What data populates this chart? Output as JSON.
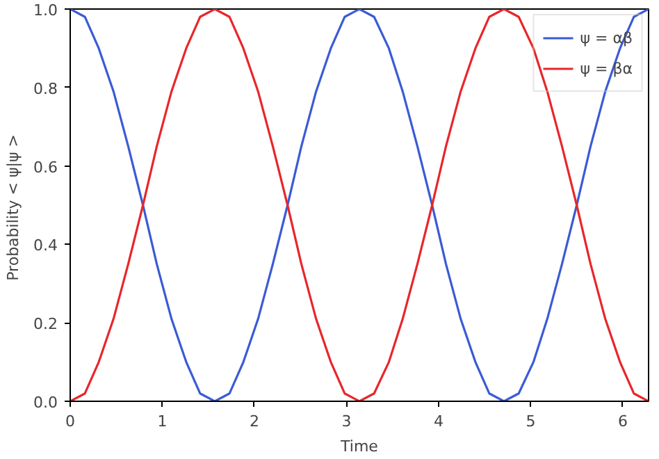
{
  "chart_data": {
    "type": "line",
    "xlabel": "Time",
    "ylabel": "Probability  < ψ|ψ >",
    "x": [
      0,
      0.16,
      0.31,
      0.47,
      0.63,
      0.79,
      0.94,
      1.1,
      1.26,
      1.41,
      1.57,
      1.73,
      1.88,
      2.04,
      2.2,
      2.36,
      2.51,
      2.67,
      2.83,
      2.98,
      3.14,
      3.3,
      3.46,
      3.61,
      3.77,
      3.93,
      4.08,
      4.24,
      4.4,
      4.55,
      4.71,
      4.87,
      5.03,
      5.18,
      5.34,
      5.5,
      5.65,
      5.81,
      5.97,
      6.12,
      6.28
    ],
    "series": [
      {
        "name": "ψ = αβ",
        "color": "#3a5bd6",
        "values": [
          1,
          0.98,
          0.9,
          0.79,
          0.65,
          0.5,
          0.35,
          0.21,
          0.1,
          0.02,
          0,
          0.02,
          0.1,
          0.21,
          0.35,
          0.5,
          0.65,
          0.79,
          0.9,
          0.98,
          1,
          0.98,
          0.9,
          0.79,
          0.65,
          0.5,
          0.35,
          0.21,
          0.1,
          0.02,
          0,
          0.02,
          0.1,
          0.21,
          0.35,
          0.5,
          0.65,
          0.79,
          0.9,
          0.98,
          1
        ]
      },
      {
        "name": "ψ = βα",
        "color": "#e8262a",
        "values": [
          0,
          0.02,
          0.1,
          0.21,
          0.35,
          0.5,
          0.65,
          0.79,
          0.9,
          0.98,
          1,
          0.98,
          0.9,
          0.79,
          0.65,
          0.5,
          0.35,
          0.21,
          0.1,
          0.02,
          0,
          0.02,
          0.1,
          0.21,
          0.35,
          0.5,
          0.65,
          0.79,
          0.9,
          0.98,
          1,
          0.98,
          0.9,
          0.79,
          0.65,
          0.5,
          0.35,
          0.21,
          0.1,
          0.02,
          0
        ]
      }
    ],
    "xlim": [
      0,
      6.28
    ],
    "ylim": [
      0,
      1
    ],
    "xticks": [
      0,
      1,
      2,
      3,
      4,
      5,
      6
    ],
    "yticks": [
      {
        "value": 0,
        "label": "0.0"
      },
      {
        "value": 0.2,
        "label": "0.2"
      },
      {
        "value": 0.4,
        "label": "0.4"
      },
      {
        "value": 0.6,
        "label": "0.6"
      },
      {
        "value": 0.8,
        "label": "0.8"
      },
      {
        "value": 1,
        "label": "1.0"
      }
    ],
    "grid": false,
    "legend": "top right",
    "line_style": "solid",
    "marker": "none"
  }
}
